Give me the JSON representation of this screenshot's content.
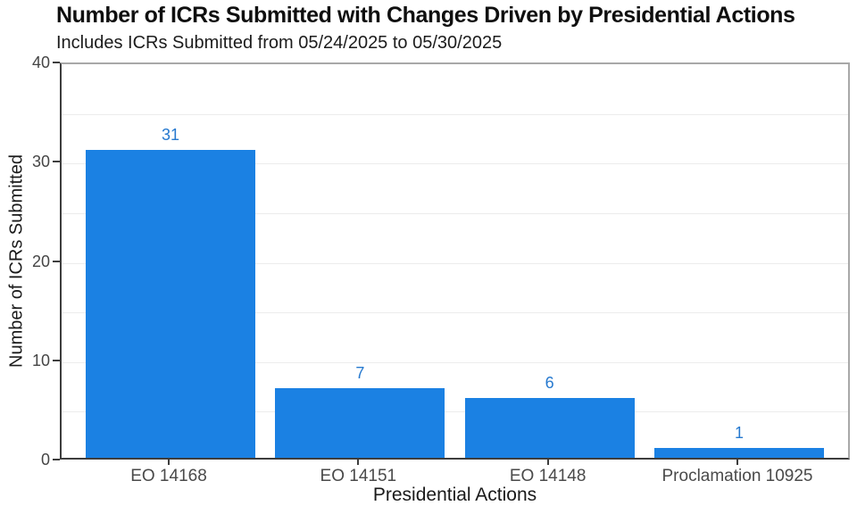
{
  "header": {
    "title": "Number of ICRs Submitted with Changes Driven by Presidential Actions",
    "subtitle": "Includes ICRs Submitted from 05/24/2025 to 05/30/2025"
  },
  "chart_data": {
    "type": "bar",
    "title": "Number of ICRs Submitted with Changes Driven by Presidential Actions",
    "subtitle": "Includes ICRs Submitted from 05/24/2025 to 05/30/2025",
    "categories": [
      "EO 14168",
      "EO 14151",
      "EO 14148",
      "Proclamation 10925"
    ],
    "values": [
      31,
      7,
      6,
      1
    ],
    "value_labels": [
      "31",
      "7",
      "6",
      "1"
    ],
    "xlabel": "Presidential Actions",
    "ylabel": "Number of ICRs Submitted",
    "ylim": [
      0,
      40
    ],
    "yticks": [
      0,
      10,
      20,
      30,
      40
    ],
    "ytick_labels": [
      "0",
      "10",
      "20",
      "30",
      "40"
    ],
    "gridline_values": [
      5,
      10,
      15,
      20,
      25,
      30,
      35
    ],
    "grid": "horizontal-on",
    "legend_position": "none",
    "bar_color": "#1b81e3",
    "value_label_color": "#2679cf",
    "gridline_color": "#ececec",
    "axis_line_color": "#3d3d3d",
    "panel_border_color": "#a8a8a8"
  }
}
